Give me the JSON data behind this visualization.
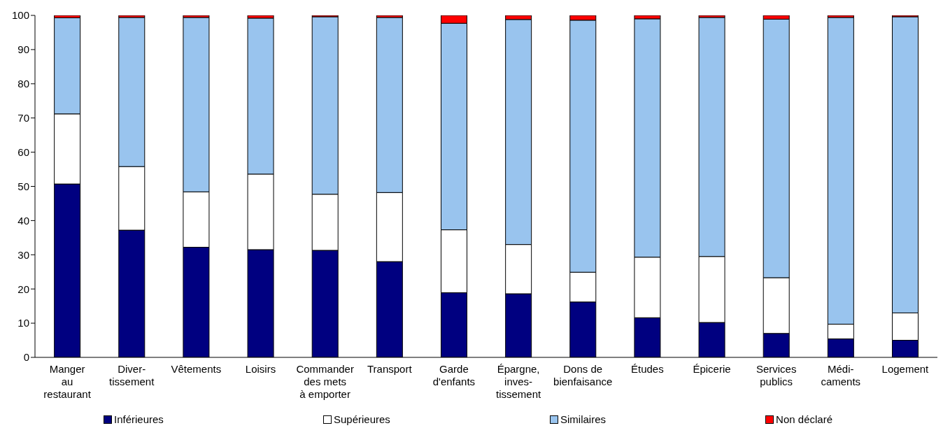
{
  "chart_data": {
    "type": "bar",
    "stacked": true,
    "categories": [
      "Manger\nau\nrestaurant",
      "Diver-\ntissement",
      "Vêtements",
      "Loisirs",
      "Commander\ndes mets\nà emporter",
      "Transport",
      "Garde\nd'enfants",
      "Épargne,\ninves-\ntissement",
      "Dons de\nbienfaisance",
      "Études",
      "Épicerie",
      "Services\npublics",
      "Médi-\ncaments",
      "Logement"
    ],
    "series": [
      {
        "name": "Inférieures",
        "color": "#000080",
        "values": [
          50.7,
          37.2,
          32.2,
          31.5,
          31.3,
          28.0,
          18.9,
          18.6,
          16.2,
          11.6,
          10.2,
          7.0,
          5.4,
          5.0
        ]
      },
      {
        "name": "Supérieures",
        "color": "#ffffff",
        "values": [
          20.5,
          18.6,
          16.2,
          22.1,
          16.4,
          20.2,
          18.4,
          14.4,
          8.7,
          17.7,
          19.3,
          16.3,
          4.3,
          8.0
        ]
      },
      {
        "name": "Similaires",
        "color": "#99c4ee",
        "values": [
          28.1,
          43.6,
          51.0,
          45.6,
          51.9,
          51.2,
          60.4,
          65.8,
          73.7,
          69.7,
          69.9,
          75.6,
          89.7,
          86.6
        ]
      },
      {
        "name": "Non déclaré",
        "color": "#ff0000",
        "values": [
          0.7,
          0.6,
          0.6,
          0.8,
          0.4,
          0.6,
          2.3,
          1.2,
          1.4,
          1.0,
          0.6,
          1.1,
          0.6,
          0.4
        ]
      }
    ],
    "ylim": [
      0,
      100
    ],
    "yticks": [
      0,
      10,
      20,
      30,
      40,
      50,
      60,
      70,
      80,
      90,
      100
    ],
    "grid": false,
    "legend": "bottom"
  }
}
